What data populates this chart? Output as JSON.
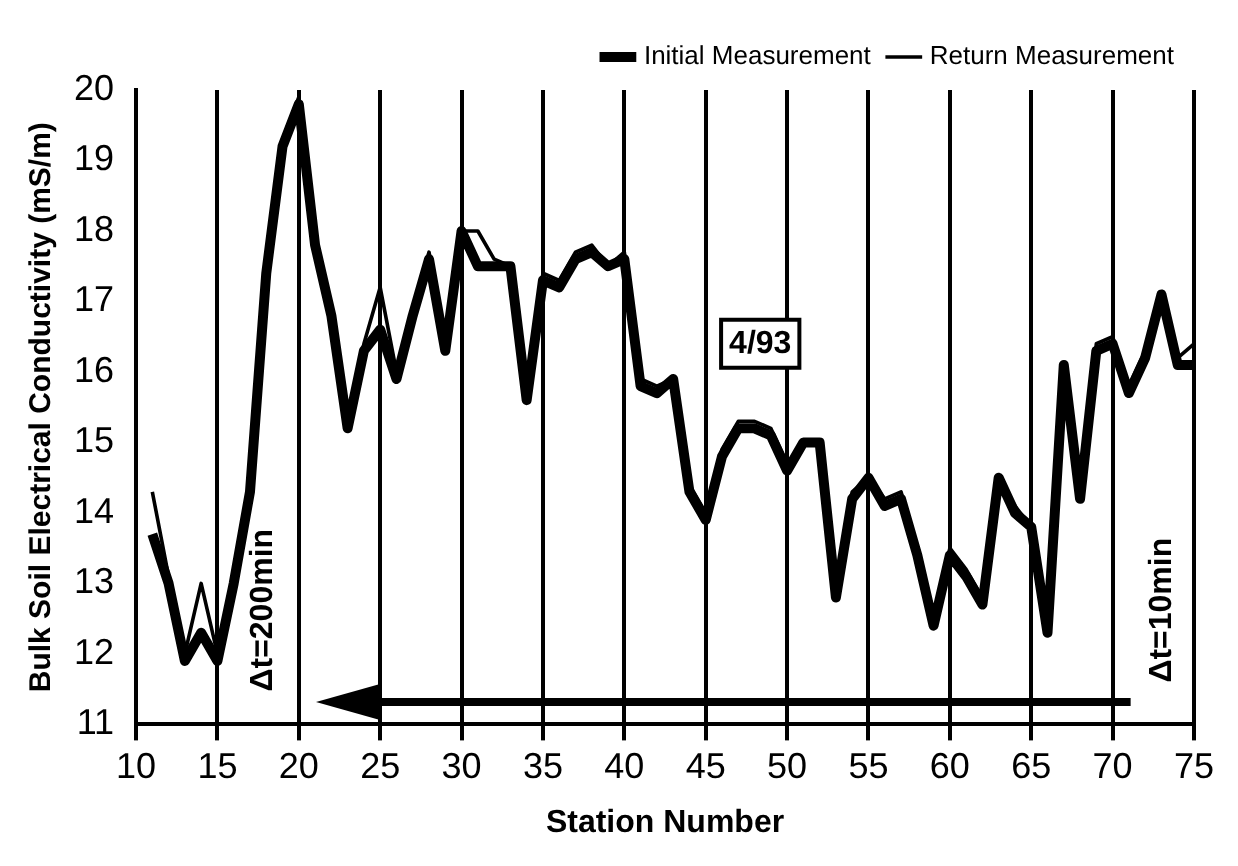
{
  "chart_data": {
    "type": "line",
    "xlabel": "Station Number",
    "ylabel": "Bulk Soil Electrical Conductivity (mS/m)",
    "x": [
      11,
      12,
      13,
      14,
      15,
      16,
      17,
      18,
      19,
      20,
      21,
      22,
      23,
      24,
      25,
      26,
      27,
      28,
      29,
      30,
      31,
      32,
      33,
      34,
      35,
      36,
      37,
      38,
      39,
      40,
      41,
      42,
      43,
      44,
      45,
      46,
      47,
      48,
      49,
      50,
      51,
      52,
      53,
      54,
      55,
      56,
      57,
      58,
      59,
      60,
      61,
      62,
      63,
      64,
      65,
      66,
      67,
      68,
      69,
      70,
      71,
      72,
      73,
      74,
      75
    ],
    "series": [
      {
        "name": "Initial Measurement",
        "color": "#000000",
        "values": [
          13.7,
          13.0,
          11.9,
          12.3,
          11.9,
          13.0,
          14.3,
          17.4,
          19.2,
          19.8,
          17.8,
          16.8,
          15.2,
          16.3,
          16.6,
          15.9,
          16.8,
          17.6,
          16.3,
          18.0,
          17.5,
          17.5,
          17.5,
          15.6,
          17.3,
          17.2,
          17.6,
          17.7,
          17.5,
          17.6,
          15.8,
          15.7,
          15.9,
          14.3,
          13.9,
          14.8,
          15.2,
          15.2,
          15.1,
          14.6,
          15.0,
          15.0,
          12.8,
          14.2,
          14.5,
          14.1,
          14.2,
          13.4,
          12.4,
          13.4,
          13.1,
          12.7,
          14.5,
          14.0,
          13.8,
          12.3,
          16.1,
          14.2,
          16.3,
          16.4,
          15.7,
          16.2,
          17.1,
          16.1,
          16.1
        ]
      },
      {
        "name": "Return Measurement",
        "color": "#000000",
        "values": [
          14.3,
          13.1,
          12.0,
          13.0,
          12.0,
          13.1,
          14.4,
          17.5,
          19.3,
          19.9,
          17.9,
          16.9,
          15.3,
          16.4,
          17.2,
          16.0,
          16.9,
          17.7,
          16.4,
          18.0,
          18.0,
          17.6,
          17.5,
          15.7,
          17.4,
          17.3,
          17.7,
          17.8,
          17.5,
          17.7,
          15.9,
          15.8,
          15.9,
          14.4,
          14.0,
          14.9,
          15.3,
          15.3,
          15.2,
          14.7,
          15.0,
          15.0,
          12.9,
          14.3,
          14.5,
          14.2,
          14.3,
          13.5,
          12.5,
          13.5,
          13.2,
          12.8,
          14.5,
          14.1,
          13.8,
          12.4,
          16.1,
          14.3,
          16.4,
          16.5,
          15.8,
          16.3,
          17.1,
          16.2,
          16.4
        ]
      }
    ],
    "xlim": [
      10,
      75
    ],
    "xticks": [
      10,
      15,
      20,
      25,
      30,
      35,
      40,
      45,
      50,
      55,
      60,
      65,
      70,
      75
    ],
    "ylim": [
      11,
      20
    ],
    "yticks": [
      11,
      12,
      13,
      14,
      15,
      16,
      17,
      18,
      19,
      20
    ],
    "grid": "x",
    "legend": "top right",
    "marker": "none",
    "line_style": "solid",
    "annotations": [
      "4/93",
      "Δt=200min",
      "Δt=10min"
    ]
  }
}
